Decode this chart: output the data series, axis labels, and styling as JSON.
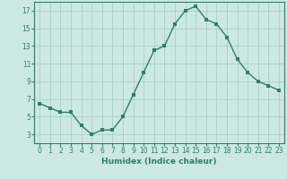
{
  "x": [
    0,
    1,
    2,
    3,
    4,
    5,
    6,
    7,
    8,
    9,
    10,
    11,
    12,
    13,
    14,
    15,
    16,
    17,
    18,
    19,
    20,
    21,
    22,
    23
  ],
  "y": [
    6.5,
    6.0,
    5.5,
    5.5,
    4.0,
    3.0,
    3.5,
    3.5,
    5.0,
    7.5,
    10.0,
    12.5,
    13.0,
    15.5,
    17.0,
    17.5,
    16.0,
    15.5,
    14.0,
    11.5,
    10.0,
    9.0,
    8.5,
    8.0
  ],
  "xlabel": "Humidex (Indice chaleur)",
  "line_color": "#2e7d6e",
  "marker_color": "#2e7d6e",
  "bg_color": "#cce8e4",
  "grid_color": "#aaceca",
  "tick_color": "#2e7d6e",
  "spine_color": "#2e7d6e",
  "ylim": [
    2,
    18
  ],
  "xlim": [
    -0.5,
    23.5
  ],
  "yticks": [
    3,
    5,
    7,
    9,
    11,
    13,
    15,
    17
  ],
  "xticks": [
    0,
    1,
    2,
    3,
    4,
    5,
    6,
    7,
    8,
    9,
    10,
    11,
    12,
    13,
    14,
    15,
    16,
    17,
    18,
    19,
    20,
    21,
    22,
    23
  ],
  "xlabel_fontsize": 6.5,
  "tick_fontsize": 5.5,
  "linewidth": 1.0,
  "markersize": 2.2
}
